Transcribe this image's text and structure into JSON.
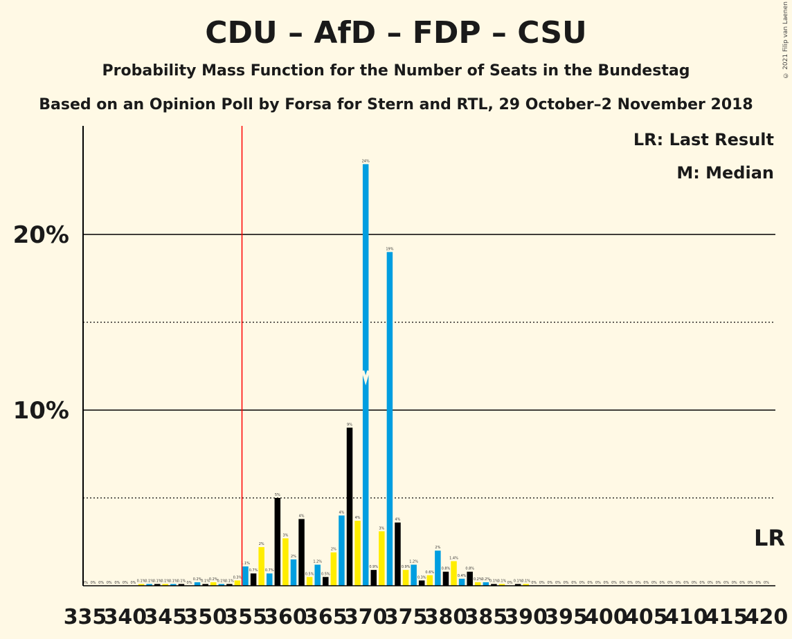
{
  "title": "CDU – AfD – FDP – CSU",
  "subtitle": "Probability Mass Function for the Number of Seats in the Bundestag",
  "subtitle2": "Based on an Opinion Poll by Forsa for Stern and RTL, 29 October–2 November 2018",
  "copyright": "© 2021 Filip van Laenen",
  "legend": {
    "lr": "LR: Last Result",
    "median": "M: Median",
    "lr_marker": "LR"
  },
  "colors": {
    "blue": "#009EE0",
    "black": "#000000",
    "yellow": "#FFED00",
    "lr_line": "#FF0000",
    "background": "#FFF9E5"
  },
  "chart_data": {
    "type": "bar",
    "xlabel": "",
    "ylabel": "",
    "ylim": [
      0,
      26
    ],
    "ytick_values": [
      10,
      20
    ],
    "ytick_labels": [
      "10%",
      "20%"
    ],
    "dotted_gridlines": [
      5,
      15
    ],
    "x_tick_values": [
      335,
      340,
      345,
      350,
      355,
      360,
      365,
      370,
      375,
      380,
      385,
      390,
      395,
      400,
      405,
      410,
      415,
      420
    ],
    "last_result": 355,
    "median": 370,
    "seats": [
      335,
      336,
      337,
      338,
      339,
      340,
      341,
      342,
      343,
      344,
      345,
      346,
      347,
      348,
      349,
      350,
      351,
      352,
      353,
      354,
      355,
      356,
      357,
      358,
      359,
      360,
      361,
      362,
      363,
      364,
      365,
      366,
      367,
      368,
      369,
      370,
      371,
      372,
      373,
      374,
      375,
      376,
      377,
      378,
      379,
      380,
      381,
      382,
      383,
      384,
      385,
      386,
      387,
      388,
      389,
      390,
      391,
      392,
      393,
      394,
      395,
      396,
      397,
      398,
      399,
      400,
      401,
      402,
      403,
      404,
      405,
      406,
      407,
      408,
      409,
      410,
      411,
      412,
      413,
      414,
      415,
      416,
      417,
      418,
      419,
      420
    ],
    "values": [
      0,
      0,
      0,
      0,
      0,
      0,
      0,
      0.1,
      0.1,
      0.1,
      0.1,
      0.1,
      0.1,
      0,
      0.2,
      0.1,
      0.2,
      0.1,
      0.1,
      0.3,
      1.1,
      0.7,
      2.2,
      0.7,
      5.0,
      2.7,
      1.5,
      3.8,
      0.5,
      1.2,
      0.5,
      1.9,
      4.0,
      9.0,
      3.7,
      24.0,
      0.9,
      3.1,
      19.0,
      3.6,
      0.9,
      1.2,
      0.3,
      0.6,
      2.0,
      0.8,
      1.4,
      0.4,
      0.8,
      0.2,
      0.2,
      0.1,
      0.1,
      0,
      0.1,
      0.1,
      0,
      0,
      0,
      0,
      0,
      0,
      0,
      0,
      0,
      0,
      0,
      0,
      0,
      0,
      0,
      0,
      0,
      0,
      0,
      0,
      0,
      0,
      0,
      0,
      0,
      0,
      0,
      0,
      0,
      0
    ],
    "labels": [
      "0%",
      "0%",
      "0%",
      "0%",
      "0%",
      "0%",
      "0%",
      "0.1%",
      "0.1%",
      "0.1%",
      "0.1%",
      "0.1%",
      "0.1%",
      "0%",
      "0.2%",
      "0.1%",
      "0.2%",
      "0.1%",
      "0.1%",
      "0.3%",
      "1.1%",
      "0.7%",
      "2%",
      "0.7%",
      "5%",
      "3%",
      "2%",
      "4%",
      "0.5%",
      "1.2%",
      "0.5%",
      "2%",
      "4%",
      "9%",
      "4%",
      "24%",
      "0.9%",
      "3%",
      "19%",
      "4%",
      "0.9%",
      "1.2%",
      "0.3%",
      "0.6%",
      "2%",
      "0.8%",
      "1.4%",
      "0.4%",
      "0.8%",
      "0.2%",
      "0.2%",
      "0.1%",
      "0.1%",
      "0%",
      "0.1%",
      "0.1%",
      "0%",
      "0%",
      "0%",
      "0%",
      "0%",
      "0%",
      "0%",
      "0%",
      "0%",
      "0%",
      "0%",
      "0%",
      "0%",
      "0%",
      "0%",
      "0%",
      "0%",
      "0%",
      "0%",
      "0%",
      "0%",
      "0%",
      "0%",
      "0%",
      "0%",
      "0%",
      "0%",
      "0%",
      "0%",
      "0%"
    ]
  }
}
